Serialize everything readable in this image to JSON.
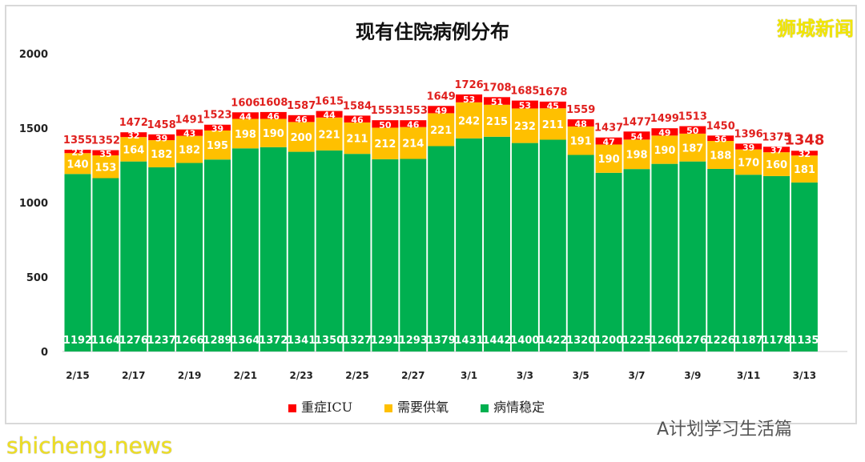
{
  "chart_data": {
    "type": "bar",
    "stacked": true,
    "title": "现有住院病例分布",
    "categories": [
      "2/15",
      "2/16",
      "2/17",
      "2/18",
      "2/19",
      "2/20",
      "2/21",
      "2/22",
      "2/23",
      "2/24",
      "2/25",
      "2/26",
      "2/27",
      "2/28",
      "3/1",
      "3/2",
      "3/3",
      "3/4",
      "3/5",
      "3/6",
      "3/7",
      "3/8",
      "3/9",
      "3/10",
      "3/11",
      "3/12",
      "3/13"
    ],
    "tick_labels": [
      "2/15",
      "2/17",
      "2/19",
      "2/21",
      "2/23",
      "2/25",
      "2/27",
      "3/1",
      "3/3",
      "3/5",
      "3/7",
      "3/9",
      "3/11",
      "3/13"
    ],
    "series": [
      {
        "name": "病情稳定",
        "color": "#00b050",
        "values": [
          1192,
          1164,
          1276,
          1237,
          1266,
          1289,
          1364,
          1372,
          1341,
          1350,
          1327,
          1291,
          1293,
          1379,
          1431,
          1442,
          1400,
          1422,
          1320,
          1200,
          1225,
          1260,
          1276,
          1226,
          1187,
          1178,
          1135
        ]
      },
      {
        "name": "需要供氧",
        "color": "#ffc000",
        "values": [
          140,
          153,
          164,
          182,
          182,
          195,
          198,
          190,
          200,
          221,
          211,
          212,
          214,
          221,
          242,
          215,
          232,
          211,
          191,
          190,
          198,
          190,
          187,
          188,
          170,
          160,
          181
        ]
      },
      {
        "name": "重症ICU",
        "color": "#ff0000",
        "values": [
          23,
          35,
          32,
          39,
          43,
          39,
          44,
          46,
          46,
          44,
          46,
          50,
          46,
          49,
          53,
          51,
          53,
          45,
          48,
          47,
          54,
          49,
          50,
          36,
          39,
          37,
          32
        ]
      }
    ],
    "totals": [
      1355,
      1352,
      1472,
      1458,
      1491,
      1523,
      1606,
      1608,
      1587,
      1615,
      1584,
      1553,
      1553,
      1649,
      1726,
      1708,
      1685,
      1678,
      1559,
      1437,
      1477,
      1499,
      1513,
      1450,
      1396,
      1375,
      1348
    ],
    "ylim": [
      0,
      2000
    ],
    "yticks": [
      0,
      500,
      1000,
      1500,
      2000
    ],
    "grid": false,
    "legend_position": "bottom"
  },
  "logo": "狮城新闻",
  "watermark_source": "shicheng.news",
  "watermark_account": "A计划学习生活篇"
}
